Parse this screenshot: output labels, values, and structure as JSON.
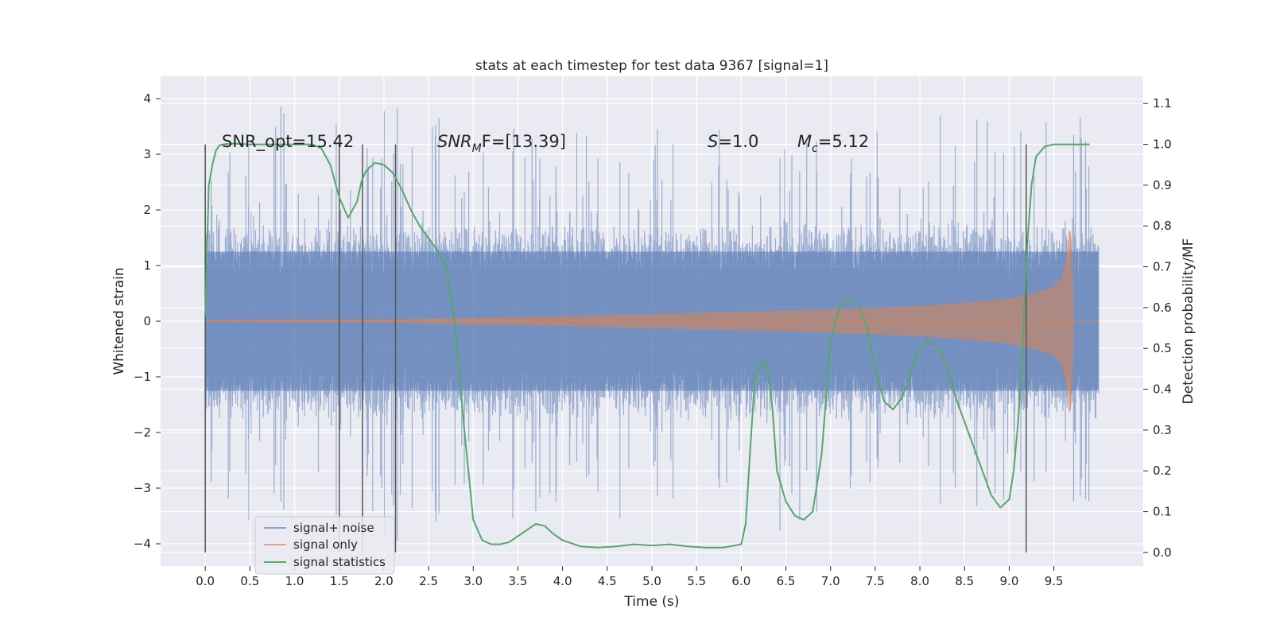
{
  "chart_data": {
    "type": "line",
    "title": "stats at each timestep for test data 9367 [signal=1]",
    "xlabel": "Time (s)",
    "ylabel": "Whitened strain",
    "ylabel_right": "Detection probability/MF",
    "xlim": [
      -0.5,
      10.5
    ],
    "ylim": [
      -4.4,
      4.4
    ],
    "ylim_right": [
      -0.0333,
      1.1667
    ],
    "x_ticks": [
      "0.0",
      "0.5",
      "1.0",
      "1.5",
      "2.0",
      "2.5",
      "3.0",
      "3.5",
      "4.0",
      "4.5",
      "5.0",
      "5.5",
      "6.0",
      "6.5",
      "7.0",
      "7.5",
      "8.0",
      "8.5",
      "9.0",
      "9.5"
    ],
    "y_ticks": [
      "4",
      "3",
      "2",
      "1",
      "0",
      "−1",
      "−2",
      "−3",
      "−4"
    ],
    "y_right_ticks": [
      "1.1",
      "1.0",
      "0.9",
      "0.8",
      "0.7",
      "0.6",
      "0.5",
      "0.4",
      "0.3",
      "0.2",
      "0.1",
      "0.0"
    ],
    "grid": true,
    "legend_position": "lower-left",
    "annotations": {
      "snr_opt": "SNR_opt=15.42",
      "snr_mf_prefix": "SNR",
      "snr_mf_sub": "M",
      "snr_mf_suffix": "F=[13.39]",
      "s_prefix": "S",
      "s_suffix": "=1.0",
      "mc_prefix": "M",
      "mc_sub": "c",
      "mc_suffix": "=5.12"
    },
    "vertical_markers_x": [
      0.0,
      1.5,
      1.76,
      2.13,
      9.19
    ],
    "series": [
      {
        "name": "signal+ noise",
        "color": "#4c72b0",
        "axis": "left",
        "x_range": [
          0.0,
          10.0
        ],
        "amplitude_typical": 1.8,
        "amplitude_max": 4.0,
        "y_min": -4.05,
        "y_max": 4.0
      },
      {
        "name": "signal only",
        "color": "#dd8452",
        "axis": "left",
        "x_range": [
          0.0,
          9.72
        ],
        "envelope": [
          [
            0.0,
            0.01
          ],
          [
            2.0,
            0.02
          ],
          [
            3.0,
            0.05
          ],
          [
            4.0,
            0.08
          ],
          [
            5.0,
            0.12
          ],
          [
            6.0,
            0.16
          ],
          [
            7.0,
            0.2
          ],
          [
            8.0,
            0.26
          ],
          [
            8.5,
            0.32
          ],
          [
            9.0,
            0.4
          ],
          [
            9.3,
            0.5
          ],
          [
            9.5,
            0.6
          ],
          [
            9.6,
            0.8
          ],
          [
            9.65,
            1.2
          ],
          [
            9.68,
            1.8
          ],
          [
            9.7,
            1.2
          ],
          [
            9.72,
            0.1
          ]
        ]
      },
      {
        "name": "signal statistics",
        "color": "#55a868",
        "axis": "right",
        "x": [
          0.0,
          0.04,
          0.08,
          0.12,
          0.16,
          0.2,
          0.3,
          0.5,
          0.8,
          1.0,
          1.2,
          1.3,
          1.4,
          1.5,
          1.6,
          1.7,
          1.75,
          1.8,
          1.9,
          2.0,
          2.1,
          2.2,
          2.3,
          2.4,
          2.5,
          2.6,
          2.7,
          2.8,
          2.9,
          3.0,
          3.1,
          3.2,
          3.3,
          3.4,
          3.5,
          3.6,
          3.7,
          3.8,
          3.9,
          4.0,
          4.2,
          4.4,
          4.6,
          4.8,
          5.0,
          5.2,
          5.4,
          5.6,
          5.8,
          6.0,
          6.05,
          6.1,
          6.15,
          6.2,
          6.25,
          6.3,
          6.35,
          6.4,
          6.5,
          6.6,
          6.7,
          6.8,
          6.9,
          7.0,
          7.1,
          7.2,
          7.3,
          7.4,
          7.5,
          7.6,
          7.7,
          7.8,
          7.9,
          8.0,
          8.1,
          8.2,
          8.3,
          8.4,
          8.5,
          8.6,
          8.7,
          8.8,
          8.9,
          9.0,
          9.05,
          9.1,
          9.15,
          9.2,
          9.25,
          9.3,
          9.4,
          9.5,
          9.6,
          9.7,
          9.8,
          9.9
        ],
        "values": [
          0.58,
          0.9,
          0.95,
          0.985,
          0.998,
          1.0,
          1.002,
          1.0,
          1.0,
          1.0,
          1.0,
          0.99,
          0.95,
          0.87,
          0.82,
          0.86,
          0.91,
          0.935,
          0.955,
          0.95,
          0.93,
          0.89,
          0.84,
          0.8,
          0.77,
          0.74,
          0.7,
          0.55,
          0.3,
          0.08,
          0.03,
          0.02,
          0.02,
          0.025,
          0.04,
          0.055,
          0.07,
          0.065,
          0.045,
          0.03,
          0.015,
          0.012,
          0.015,
          0.02,
          0.017,
          0.02,
          0.015,
          0.012,
          0.012,
          0.02,
          0.07,
          0.25,
          0.42,
          0.455,
          0.47,
          0.445,
          0.35,
          0.2,
          0.125,
          0.09,
          0.08,
          0.1,
          0.24,
          0.52,
          0.6,
          0.62,
          0.61,
          0.56,
          0.45,
          0.37,
          0.35,
          0.38,
          0.44,
          0.5,
          0.52,
          0.505,
          0.46,
          0.38,
          0.32,
          0.26,
          0.2,
          0.14,
          0.11,
          0.13,
          0.2,
          0.32,
          0.5,
          0.75,
          0.9,
          0.97,
          0.995,
          1.0,
          1.0,
          1.0,
          1.0,
          1.0
        ]
      }
    ]
  }
}
